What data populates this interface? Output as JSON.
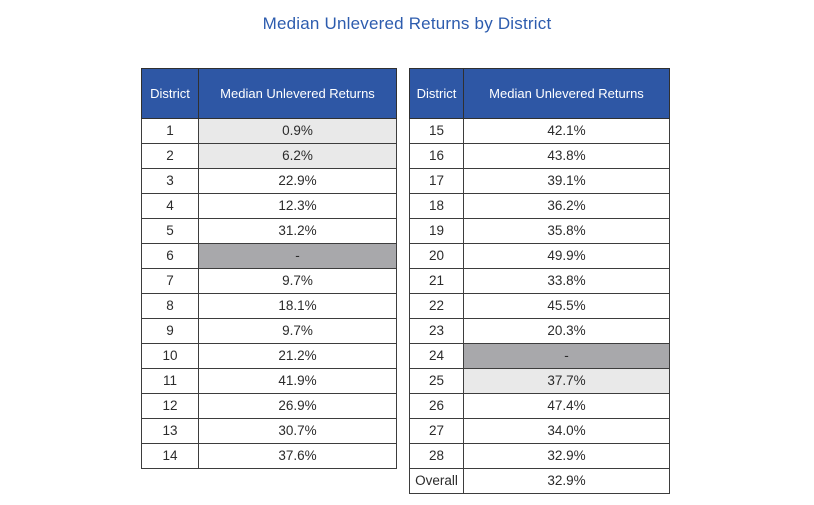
{
  "page_title": "Median Unlevered Returns by District",
  "colors": {
    "title_text": "#2d5cae",
    "header_bg": "#2e57a5",
    "header_text": "#ffffff",
    "light_highlight": "#e9e9e9",
    "dark_highlight": "#a8a8ab",
    "cell_border": "#3d3d3d"
  },
  "columns": {
    "district": "District",
    "returns": "Median Unlevered Returns"
  },
  "chart_data": {
    "type": "table",
    "title": "Median Unlevered Returns by District",
    "columns": [
      "District",
      "Median Unlevered Returns"
    ],
    "left_table_rows": [
      {
        "district": "1",
        "value": "0.9%",
        "highlight": "light"
      },
      {
        "district": "2",
        "value": "6.2%",
        "highlight": "light"
      },
      {
        "district": "3",
        "value": "22.9%",
        "highlight": "none"
      },
      {
        "district": "4",
        "value": "12.3%",
        "highlight": "none"
      },
      {
        "district": "5",
        "value": "31.2%",
        "highlight": "none"
      },
      {
        "district": "6",
        "value": "-",
        "highlight": "dark"
      },
      {
        "district": "7",
        "value": "9.7%",
        "highlight": "none"
      },
      {
        "district": "8",
        "value": "18.1%",
        "highlight": "none"
      },
      {
        "district": "9",
        "value": "9.7%",
        "highlight": "none"
      },
      {
        "district": "10",
        "value": "21.2%",
        "highlight": "none"
      },
      {
        "district": "11",
        "value": "41.9%",
        "highlight": "none"
      },
      {
        "district": "12",
        "value": "26.9%",
        "highlight": "none"
      },
      {
        "district": "13",
        "value": "30.7%",
        "highlight": "none"
      },
      {
        "district": "14",
        "value": "37.6%",
        "highlight": "none"
      }
    ],
    "right_table_rows": [
      {
        "district": "15",
        "value": "42.1%",
        "highlight": "none"
      },
      {
        "district": "16",
        "value": "43.8%",
        "highlight": "none"
      },
      {
        "district": "17",
        "value": "39.1%",
        "highlight": "none"
      },
      {
        "district": "18",
        "value": "36.2%",
        "highlight": "none"
      },
      {
        "district": "19",
        "value": "35.8%",
        "highlight": "none"
      },
      {
        "district": "20",
        "value": "49.9%",
        "highlight": "none"
      },
      {
        "district": "21",
        "value": "33.8%",
        "highlight": "none"
      },
      {
        "district": "22",
        "value": "45.5%",
        "highlight": "none"
      },
      {
        "district": "23",
        "value": "20.3%",
        "highlight": "none"
      },
      {
        "district": "24",
        "value": "-",
        "highlight": "dark"
      },
      {
        "district": "25",
        "value": "37.7%",
        "highlight": "light"
      },
      {
        "district": "26",
        "value": "47.4%",
        "highlight": "none"
      },
      {
        "district": "27",
        "value": "34.0%",
        "highlight": "none"
      },
      {
        "district": "28",
        "value": "32.9%",
        "highlight": "none"
      },
      {
        "district": "Overall",
        "value": "32.9%",
        "highlight": "none"
      }
    ]
  }
}
